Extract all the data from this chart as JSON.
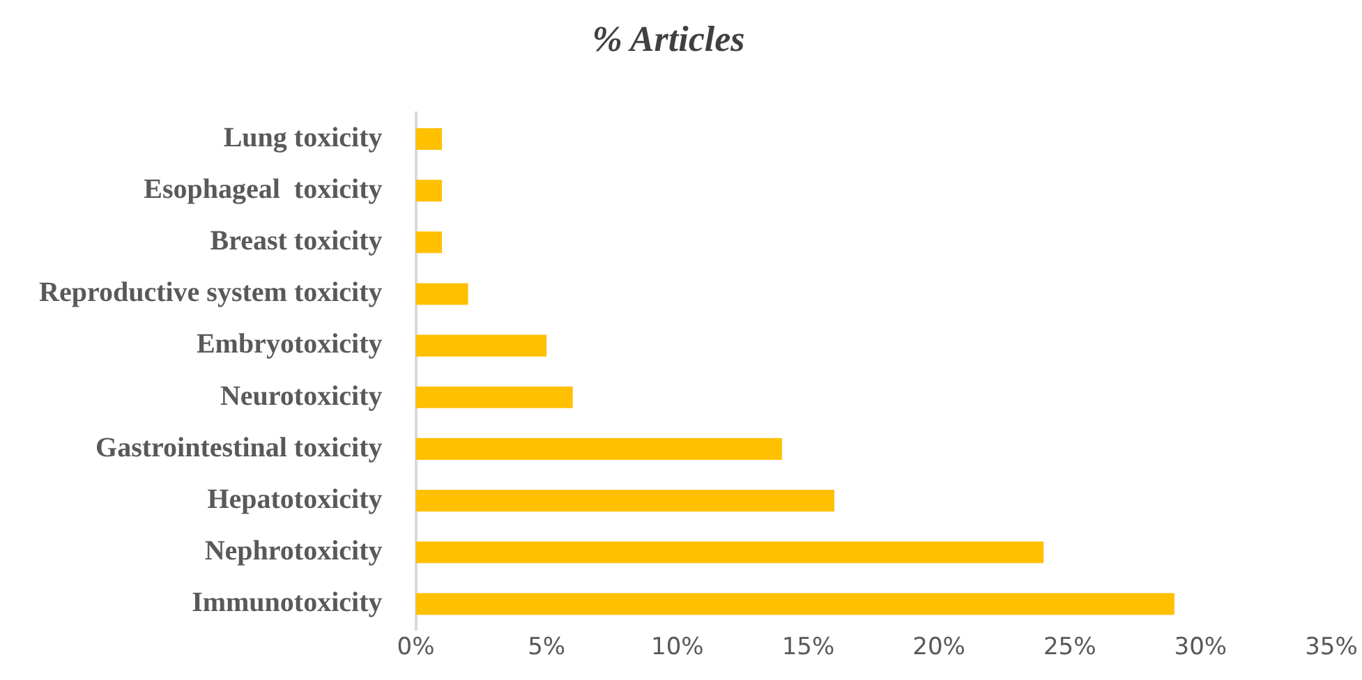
{
  "chart_data": {
    "type": "bar",
    "orientation": "horizontal",
    "title": "% Articles",
    "categories": [
      "Lung toxicity",
      "Esophageal  toxicity",
      "Breast toxicity",
      "Reproductive system toxicity",
      "Embryotoxicity",
      "Neurotoxicity",
      "Gastrointestinal toxicity",
      "Hepatotoxicity",
      "Nephrotoxicity",
      "Immunotoxicity"
    ],
    "values": [
      1,
      1,
      1,
      2,
      5,
      6,
      14,
      16,
      24,
      29
    ],
    "color": "#ffc000",
    "xlim": [
      0,
      35
    ],
    "xticks": [
      {
        "value": 0,
        "label": "0%"
      },
      {
        "value": 5,
        "label": "5%"
      },
      {
        "value": 10,
        "label": "10%"
      },
      {
        "value": 15,
        "label": "15%"
      },
      {
        "value": 20,
        "label": "20%"
      },
      {
        "value": 25,
        "label": "25%"
      },
      {
        "value": 30,
        "label": "30%"
      },
      {
        "value": 35,
        "label": "35%"
      }
    ],
    "grid": false,
    "legend": false
  }
}
